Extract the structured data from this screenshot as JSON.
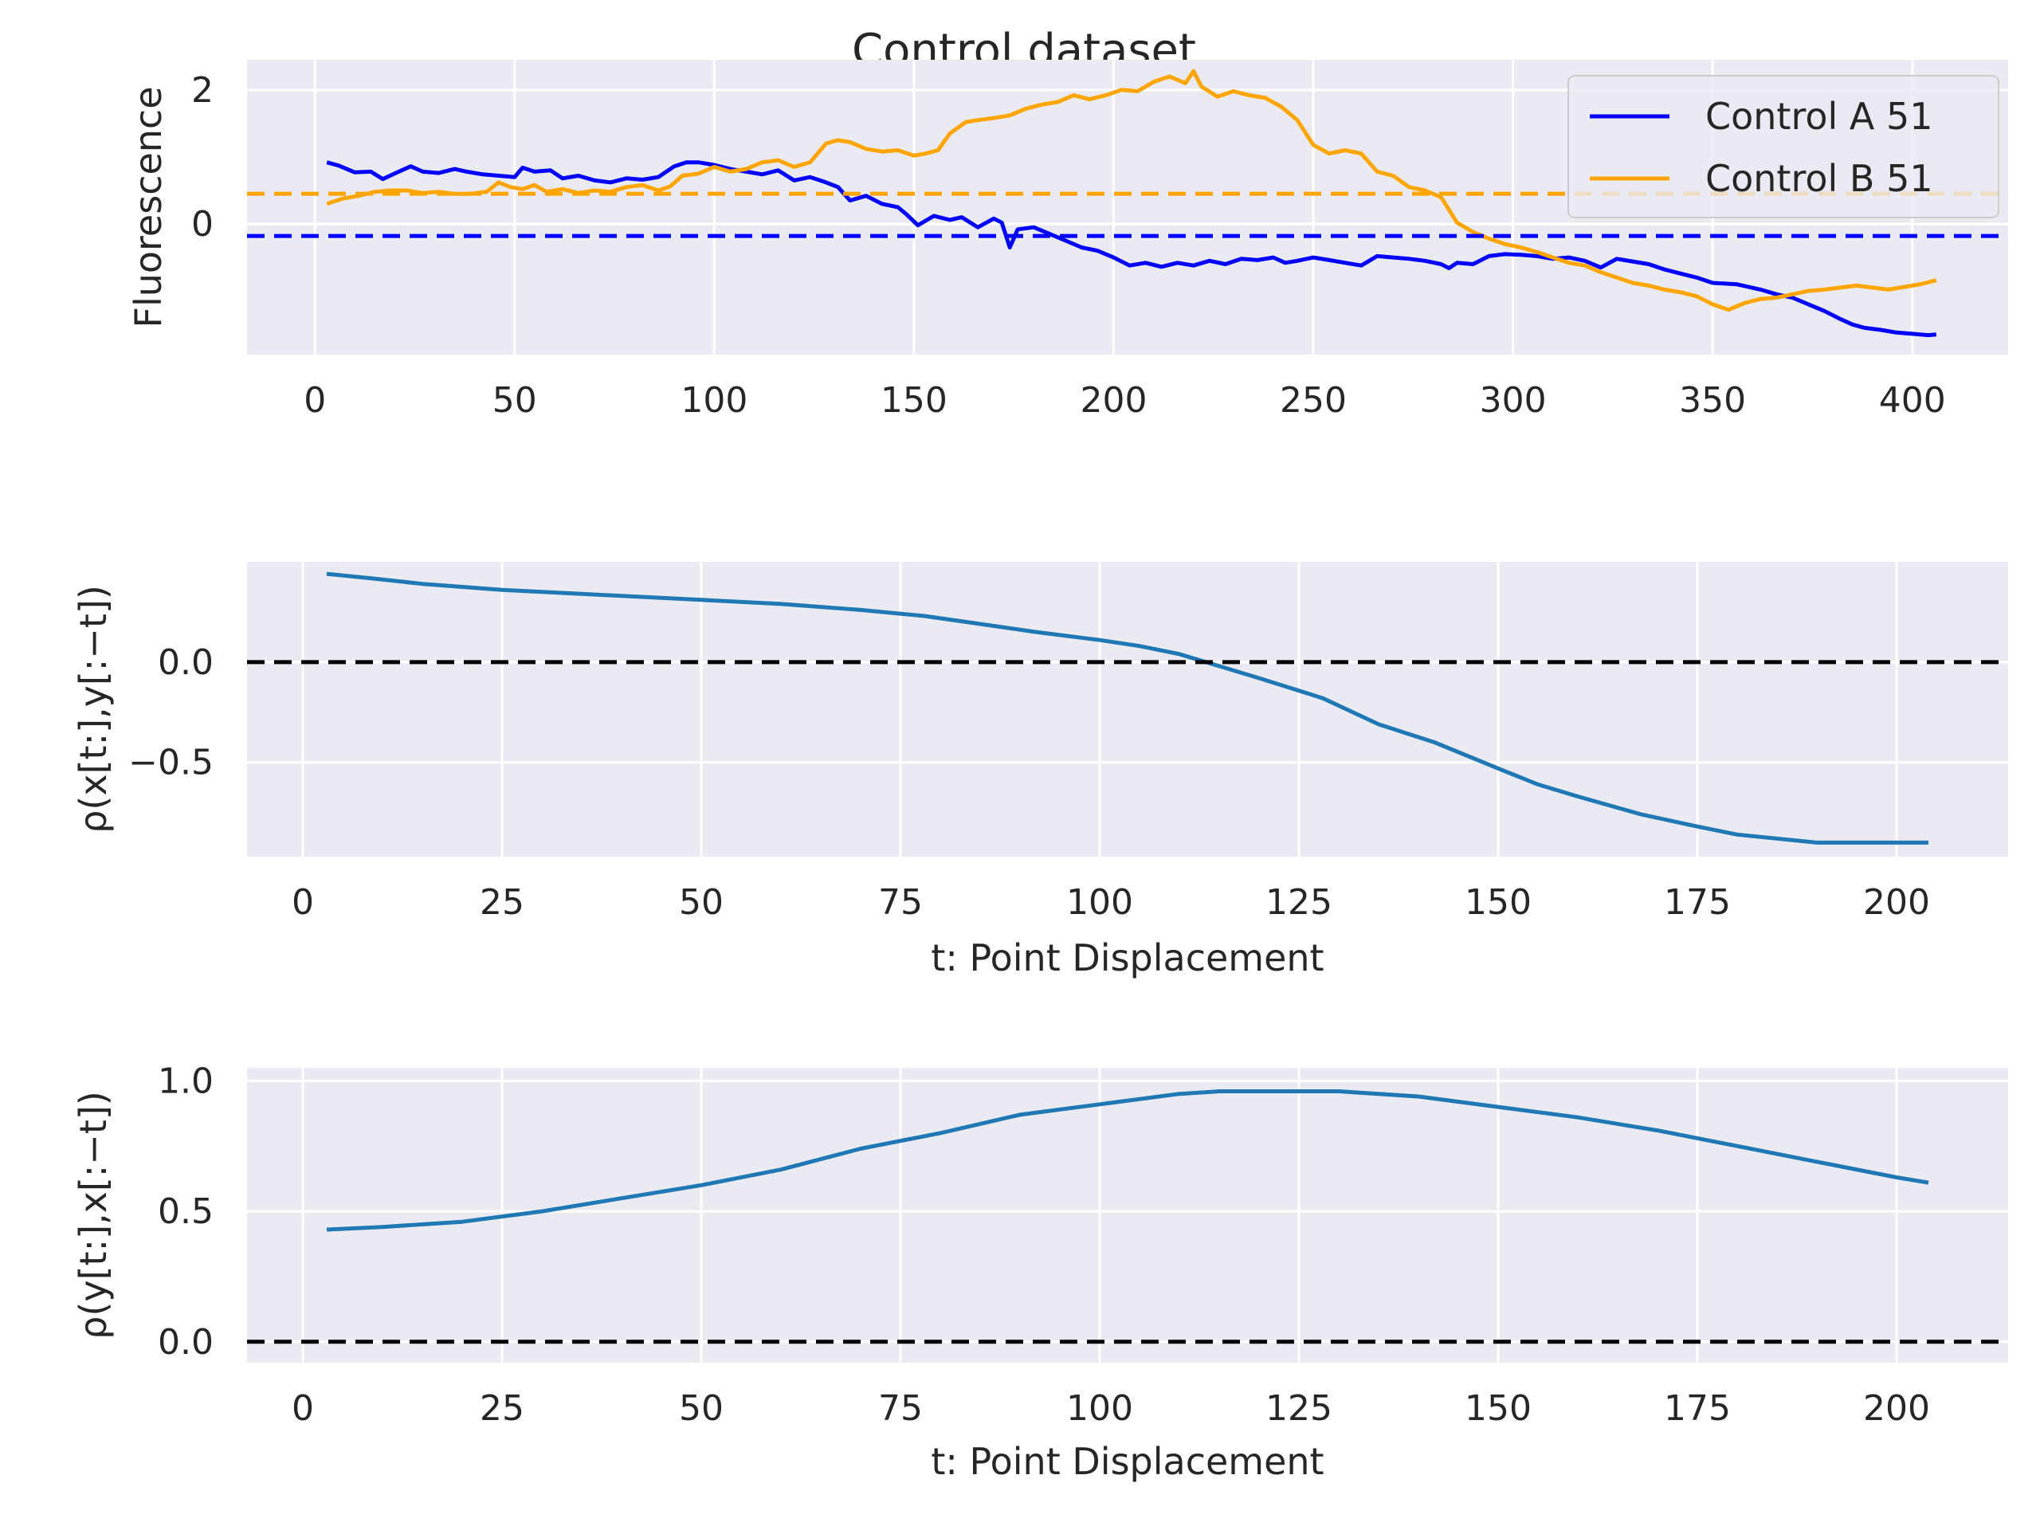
{
  "title": "Control dataset",
  "colors": {
    "axes_bg": "#eaeaf2",
    "grid": "#ffffff",
    "seriesA": "#0000ff",
    "seriesB": "#ffa500",
    "corr": "#1f77b4",
    "zero": "#000000"
  },
  "chart_data": [
    {
      "type": "line",
      "ylabel": "Fluorescence",
      "xlabel": "",
      "xlim": [
        -17,
        424
      ],
      "ylim": [
        -1.95,
        2.45
      ],
      "xticks": [
        0,
        50,
        100,
        150,
        200,
        250,
        300,
        350,
        400
      ],
      "yticks": [
        0,
        2
      ],
      "legend_position": "top-right",
      "hlines": [
        {
          "y": 0.45,
          "color": "#ffa500",
          "style": "dashed"
        },
        {
          "y": -0.18,
          "color": "#0000ff",
          "style": "dashed"
        }
      ],
      "series": [
        {
          "name": "Control A 51",
          "color": "#0000ff",
          "x": [
            3,
            6,
            10,
            14,
            17,
            21,
            24,
            27,
            31,
            35,
            38,
            42,
            46,
            50,
            52,
            55,
            59,
            62,
            66,
            70,
            74,
            78,
            82,
            86,
            90,
            93,
            96,
            100,
            104,
            108,
            112,
            116,
            120,
            124,
            128,
            131,
            134,
            138,
            142,
            146,
            148,
            151,
            155,
            159,
            162,
            166,
            170,
            172,
            174,
            176,
            180,
            184,
            188,
            192,
            196,
            200,
            204,
            208,
            212,
            216,
            220,
            224,
            228,
            232,
            236,
            240,
            243,
            246,
            250,
            254,
            258,
            262,
            264,
            266,
            270,
            274,
            278,
            282,
            284,
            286,
            290,
            294,
            298,
            302,
            306,
            310,
            314,
            318,
            322,
            326,
            330,
            334,
            338,
            342,
            346,
            350,
            356,
            362,
            366,
            370,
            374,
            378,
            382,
            385,
            388,
            392,
            396,
            400,
            404,
            406
          ],
          "values": [
            0.92,
            0.87,
            0.77,
            0.78,
            0.67,
            0.78,
            0.86,
            0.78,
            0.76,
            0.82,
            0.78,
            0.74,
            0.72,
            0.7,
            0.84,
            0.78,
            0.8,
            0.68,
            0.72,
            0.65,
            0.62,
            0.68,
            0.66,
            0.7,
            0.86,
            0.92,
            0.92,
            0.88,
            0.82,
            0.78,
            0.74,
            0.8,
            0.65,
            0.7,
            0.62,
            0.55,
            0.35,
            0.42,
            0.3,
            0.25,
            0.15,
            -0.02,
            0.12,
            0.06,
            0.1,
            -0.05,
            0.08,
            0.02,
            -0.35,
            -0.08,
            -0.05,
            -0.15,
            -0.25,
            -0.35,
            -0.4,
            -0.5,
            -0.62,
            -0.58,
            -0.64,
            -0.58,
            -0.62,
            -0.55,
            -0.6,
            -0.52,
            -0.54,
            -0.5,
            -0.58,
            -0.55,
            -0.5,
            -0.54,
            -0.58,
            -0.62,
            -0.55,
            -0.48,
            -0.5,
            -0.52,
            -0.55,
            -0.6,
            -0.66,
            -0.58,
            -0.6,
            -0.48,
            -0.45,
            -0.46,
            -0.48,
            -0.52,
            -0.5,
            -0.55,
            -0.65,
            -0.52,
            -0.56,
            -0.6,
            -0.68,
            -0.74,
            -0.8,
            -0.88,
            -0.9,
            -0.98,
            -1.05,
            -1.1,
            -1.2,
            -1.3,
            -1.42,
            -1.5,
            -1.55,
            -1.58,
            -1.62,
            -1.64,
            -1.66,
            -1.65
          ]
        },
        {
          "name": "Control B 51",
          "color": "#ffa500",
          "x": [
            3,
            7,
            11,
            15,
            19,
            23,
            27,
            31,
            35,
            39,
            43,
            46,
            49,
            52,
            55,
            58,
            62,
            66,
            70,
            74,
            78,
            82,
            86,
            89,
            92,
            96,
            100,
            104,
            108,
            112,
            116,
            120,
            124,
            128,
            131,
            134,
            138,
            142,
            146,
            150,
            153,
            156,
            159,
            163,
            166,
            170,
            174,
            178,
            182,
            186,
            190,
            194,
            198,
            202,
            206,
            210,
            214,
            218,
            220,
            222,
            226,
            230,
            234,
            238,
            242,
            246,
            250,
            254,
            258,
            262,
            266,
            270,
            274,
            278,
            282,
            286,
            290,
            294,
            298,
            302,
            306,
            310,
            314,
            318,
            322,
            326,
            330,
            334,
            338,
            342,
            346,
            350,
            354,
            358,
            362,
            366,
            370,
            374,
            378,
            382,
            386,
            390,
            394,
            398,
            402,
            406
          ],
          "values": [
            0.3,
            0.38,
            0.42,
            0.48,
            0.5,
            0.5,
            0.46,
            0.48,
            0.45,
            0.45,
            0.48,
            0.62,
            0.55,
            0.52,
            0.58,
            0.48,
            0.52,
            0.46,
            0.5,
            0.48,
            0.55,
            0.58,
            0.5,
            0.56,
            0.72,
            0.75,
            0.85,
            0.78,
            0.82,
            0.92,
            0.95,
            0.85,
            0.92,
            1.2,
            1.25,
            1.22,
            1.12,
            1.08,
            1.1,
            1.02,
            1.05,
            1.1,
            1.35,
            1.52,
            1.55,
            1.58,
            1.62,
            1.72,
            1.78,
            1.82,
            1.92,
            1.86,
            1.92,
            2.0,
            1.98,
            2.12,
            2.2,
            2.1,
            2.28,
            2.05,
            1.9,
            1.98,
            1.92,
            1.88,
            1.75,
            1.55,
            1.18,
            1.05,
            1.1,
            1.05,
            0.78,
            0.72,
            0.55,
            0.5,
            0.4,
            0.02,
            -0.12,
            -0.22,
            -0.3,
            -0.35,
            -0.42,
            -0.5,
            -0.58,
            -0.62,
            -0.72,
            -0.8,
            -0.88,
            -0.92,
            -0.98,
            -1.02,
            -1.08,
            -1.2,
            -1.28,
            -1.18,
            -1.12,
            -1.1,
            -1.05,
            -1.0,
            -0.98,
            -0.95,
            -0.92,
            -0.95,
            -0.98,
            -0.94,
            -0.9,
            -0.84
          ]
        }
      ]
    },
    {
      "type": "line",
      "ylabel": "ρ(x[t:],y[:−t])",
      "xlabel": "t: Point Displacement",
      "xlim": [
        -7,
        214
      ],
      "ylim": [
        -0.97,
        0.5
      ],
      "xticks": [
        0,
        25,
        50,
        75,
        100,
        125,
        150,
        175,
        200
      ],
      "ytick_labels": [
        "0.0",
        "−0.5"
      ],
      "yticks": [
        0,
        -0.5
      ],
      "hline": 0,
      "series": [
        {
          "color": "#1f77b4",
          "x": [
            3,
            8,
            15,
            25,
            35,
            45,
            50,
            60,
            70,
            78,
            85,
            92,
            100,
            105,
            110,
            115,
            120,
            128,
            135,
            142,
            150,
            155,
            160,
            168,
            175,
            180,
            190,
            200,
            204
          ],
          "values": [
            0.44,
            0.42,
            0.39,
            0.36,
            0.34,
            0.32,
            0.31,
            0.29,
            0.26,
            0.23,
            0.19,
            0.15,
            0.11,
            0.08,
            0.04,
            -0.02,
            -0.08,
            -0.18,
            -0.31,
            -0.4,
            -0.53,
            -0.61,
            -0.67,
            -0.76,
            -0.82,
            -0.86,
            -0.9,
            -0.9,
            -0.9
          ]
        }
      ]
    },
    {
      "type": "line",
      "ylabel": "ρ(y[t:],x[:−t])",
      "xlabel": "t: Point Displacement",
      "xlim": [
        -7,
        214
      ],
      "ylim": [
        -0.08,
        1.05
      ],
      "xticks": [
        0,
        25,
        50,
        75,
        100,
        125,
        150,
        175,
        200
      ],
      "ytick_labels": [
        "0.0",
        "0.5",
        "1.0"
      ],
      "yticks": [
        0,
        0.5,
        1.0
      ],
      "hline": 0,
      "series": [
        {
          "color": "#1f77b4",
          "x": [
            3,
            10,
            20,
            30,
            40,
            50,
            60,
            70,
            80,
            90,
            100,
            110,
            115,
            120,
            125,
            130,
            140,
            150,
            160,
            170,
            180,
            190,
            200,
            204
          ],
          "values": [
            0.43,
            0.44,
            0.46,
            0.5,
            0.55,
            0.6,
            0.66,
            0.74,
            0.8,
            0.87,
            0.91,
            0.95,
            0.96,
            0.96,
            0.96,
            0.96,
            0.94,
            0.9,
            0.86,
            0.81,
            0.75,
            0.69,
            0.63,
            0.61
          ]
        }
      ]
    }
  ]
}
